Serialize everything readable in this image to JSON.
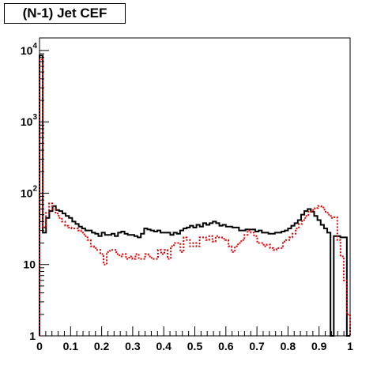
{
  "chart_data": {
    "type": "histogram",
    "title": "(N-1) Jet CEF",
    "xlabel": "",
    "ylabel": "",
    "xlim": [
      0,
      1
    ],
    "ylim": [
      1,
      15000
    ],
    "yscale": "log",
    "grid": false,
    "x_tick_labels": [
      "0",
      "0.1",
      "0.2",
      "0.3",
      "0.4",
      "0.5",
      "0.6",
      "0.7",
      "0.8",
      "0.9",
      "1"
    ],
    "y_tick_labels": [
      {
        "value": 1,
        "base": "1",
        "exp": ""
      },
      {
        "value": 10,
        "base": "10",
        "exp": ""
      },
      {
        "value": 100,
        "base": "10",
        "exp": "2"
      },
      {
        "value": 1000,
        "base": "10",
        "exp": "3"
      },
      {
        "value": 10000,
        "base": "10",
        "exp": "4"
      }
    ],
    "bin_edges": [
      0,
      1
    ],
    "series": [
      {
        "color": "#000000",
        "style": "solid",
        "values": [
          8500,
          28,
          45,
          56,
          66,
          58,
          56,
          52,
          48,
          45,
          40,
          37,
          34,
          32,
          30,
          30,
          28,
          27,
          25,
          28,
          26,
          26,
          27,
          25,
          28,
          29,
          27,
          26,
          26,
          25,
          24,
          27,
          32,
          31,
          30,
          29,
          30,
          28,
          28,
          28,
          26,
          28,
          27,
          30,
          32,
          33,
          35,
          33,
          36,
          34,
          38,
          36,
          38,
          40,
          38,
          35,
          36,
          34,
          34,
          33,
          33,
          30,
          30,
          31,
          31,
          31,
          29,
          30,
          28,
          28,
          27,
          27,
          28,
          28,
          29,
          30,
          32,
          35,
          38,
          42,
          50,
          56,
          60,
          55,
          48,
          42,
          36,
          32,
          28,
          1,
          25,
          25,
          24,
          24,
          1
        ]
      },
      {
        "color": "#dd0000",
        "style": "dotted",
        "values": [
          7500,
          33,
          53,
          72,
          60,
          52,
          45,
          40,
          35,
          33,
          32,
          32,
          30,
          28,
          25,
          22,
          18,
          17,
          16,
          14,
          10,
          15,
          16,
          16,
          14,
          13,
          14,
          12,
          13,
          12,
          14,
          12,
          12,
          14,
          13,
          12,
          12,
          16,
          14,
          16,
          12,
          18,
          20,
          20,
          15,
          24,
          22,
          18,
          20,
          18,
          24,
          24,
          22,
          25,
          21,
          25,
          24,
          23,
          22,
          18,
          15,
          18,
          20,
          22,
          26,
          30,
          28,
          25,
          20,
          20,
          18,
          19,
          17,
          16,
          17,
          17,
          21,
          22,
          24,
          27,
          32,
          37,
          42,
          48,
          55,
          58,
          62,
          66,
          63,
          55,
          50,
          45,
          46,
          22,
          13,
          6,
          2
        ]
      }
    ]
  }
}
